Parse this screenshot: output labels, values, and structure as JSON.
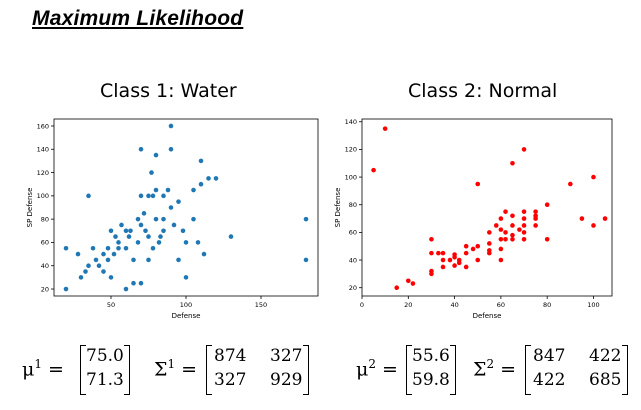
{
  "title": "Maximum Likelihood",
  "chart_data": [
    {
      "type": "scatter",
      "title": "Class 1: Water",
      "xlabel": "Defense",
      "ylabel": "SP Defense",
      "xlim": [
        12,
        188
      ],
      "ylim": [
        14,
        166
      ],
      "xticks": [
        50,
        100,
        150
      ],
      "yticks": [
        20,
        40,
        60,
        80,
        100,
        120,
        140,
        160
      ],
      "color": "#1f77b4",
      "x": [
        20,
        20,
        28,
        30,
        33,
        35,
        38,
        40,
        42,
        45,
        48,
        48,
        50,
        52,
        53,
        55,
        57,
        60,
        60,
        62,
        63,
        65,
        65,
        68,
        68,
        70,
        70,
        70,
        72,
        73,
        75,
        75,
        75,
        77,
        78,
        80,
        80,
        80,
        82,
        83,
        85,
        85,
        85,
        88,
        90,
        90,
        90,
        92,
        95,
        95,
        98,
        100,
        100,
        105,
        105,
        108,
        110,
        110,
        112,
        115,
        120,
        130,
        180,
        180,
        55,
        60,
        50,
        45,
        78,
        70,
        35
      ],
      "y": [
        20,
        55,
        50,
        30,
        35,
        40,
        55,
        45,
        40,
        50,
        55,
        45,
        70,
        50,
        65,
        60,
        75,
        55,
        20,
        65,
        70,
        45,
        25,
        80,
        60,
        75,
        100,
        140,
        85,
        70,
        65,
        100,
        45,
        120,
        55,
        80,
        105,
        135,
        60,
        65,
        70,
        80,
        100,
        105,
        160,
        90,
        140,
        75,
        95,
        45,
        70,
        30,
        60,
        80,
        105,
        60,
        130,
        110,
        50,
        115,
        115,
        65,
        80,
        45,
        55,
        70,
        30,
        35,
        100,
        25,
        100
      ]
    },
    {
      "type": "scatter",
      "title": "Class 2: Normal",
      "xlabel": "Defense",
      "ylabel": "SP Defense",
      "xlim": [
        0,
        108
      ],
      "ylim": [
        14,
        142
      ],
      "xticks": [
        0,
        20,
        40,
        60,
        80,
        100
      ],
      "yticks": [
        20,
        40,
        60,
        80,
        100,
        120,
        140
      ],
      "color": "#ff0000",
      "x": [
        5,
        10,
        15,
        20,
        22,
        30,
        30,
        30,
        30,
        33,
        35,
        35,
        35,
        38,
        40,
        40,
        40,
        42,
        42,
        45,
        45,
        45,
        48,
        50,
        50,
        50,
        55,
        55,
        55,
        55,
        58,
        60,
        60,
        60,
        60,
        60,
        62,
        62,
        62,
        65,
        65,
        65,
        65,
        65,
        68,
        70,
        70,
        70,
        70,
        70,
        70,
        75,
        75,
        75,
        75,
        80,
        80,
        90,
        95,
        100,
        100,
        105
      ],
      "y": [
        105,
        135,
        20,
        25,
        23,
        30,
        32,
        45,
        55,
        45,
        45,
        40,
        35,
        40,
        42,
        44,
        36,
        40,
        38,
        50,
        45,
        35,
        48,
        40,
        95,
        50,
        52,
        60,
        47,
        45,
        65,
        40,
        48,
        55,
        62,
        70,
        60,
        55,
        75,
        58,
        55,
        65,
        72,
        110,
        62,
        55,
        60,
        65,
        75,
        70,
        120,
        65,
        72,
        70,
        75,
        80,
        55,
        95,
        70,
        65,
        100,
        70
      ]
    }
  ],
  "formulas": {
    "class1": {
      "mu_symbol": "μ",
      "mu_sup": "1",
      "sigma_symbol": "Σ",
      "sigma_sup": "1",
      "equals": "=",
      "mu": [
        "75.0",
        "71.3"
      ],
      "sigma": [
        [
          "874",
          "327"
        ],
        [
          "327",
          "929"
        ]
      ]
    },
    "class2": {
      "mu_symbol": "μ",
      "mu_sup": "2",
      "sigma_symbol": "Σ",
      "sigma_sup": "2",
      "equals": "=",
      "mu": [
        "55.6",
        "59.8"
      ],
      "sigma": [
        [
          "847",
          "422"
        ],
        [
          "422",
          "685"
        ]
      ]
    }
  }
}
